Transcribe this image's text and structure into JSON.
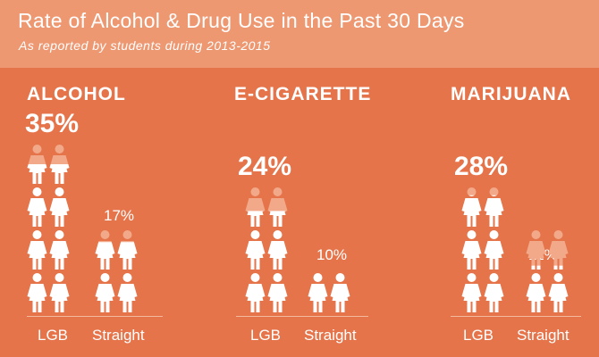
{
  "header": {
    "title": "Rate of Alcohol & Drug Use in the Past 30 Days",
    "subtitle": "As reported by students during 2013-2015"
  },
  "colors": {
    "background": "#e5744a",
    "header": "#ee9872",
    "figure_full": "#ffffff",
    "figure_faded": "#f2a98a"
  },
  "chart_data": [
    {
      "type": "bar",
      "title": "ALCOHOL",
      "categories": [
        "LGB",
        "Straight"
      ],
      "values": [
        35,
        17
      ],
      "value_labels": [
        "35%",
        "17%"
      ],
      "unit": "%"
    },
    {
      "type": "bar",
      "title": "E-CIGARETTE",
      "categories": [
        "LGB",
        "Straight"
      ],
      "values": [
        24,
        10
      ],
      "value_labels": [
        "24%",
        "10%"
      ],
      "unit": "%"
    },
    {
      "type": "bar",
      "title": "MARIJUANA",
      "categories": [
        "LGB",
        "Straight"
      ],
      "values": [
        28,
        11
      ],
      "value_labels": [
        "28%",
        "11%"
      ],
      "unit": "%"
    }
  ]
}
